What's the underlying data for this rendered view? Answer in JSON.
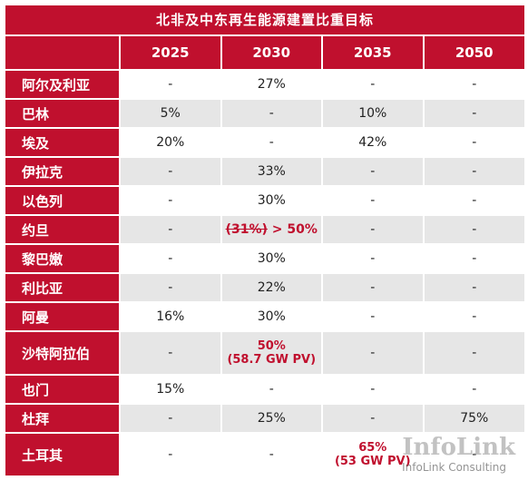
{
  "title": "北非及中东再生能源建置比重目标",
  "columns": [
    "2025",
    "2030",
    "2035",
    "2050"
  ],
  "rows": [
    {
      "country": "阿尔及利亚",
      "cells": [
        "-",
        "27%",
        "-",
        "-"
      ]
    },
    {
      "country": "巴林",
      "cells": [
        "5%",
        "-",
        "10%",
        "-"
      ]
    },
    {
      "country": "埃及",
      "cells": [
        "20%",
        "-",
        "42%",
        "-"
      ]
    },
    {
      "country": "伊拉克",
      "cells": [
        "-",
        "33%",
        "-",
        "-"
      ]
    },
    {
      "country": "以色列",
      "cells": [
        "-",
        "30%",
        "-",
        "-"
      ]
    },
    {
      "country": "约旦",
      "cells": [
        "-",
        "",
        "-",
        "-"
      ],
      "special": {
        "old": "(31%)",
        "arrow": " > ",
        "new": "50%"
      }
    },
    {
      "country": "黎巴嫩",
      "cells": [
        "-",
        "30%",
        "-",
        "-"
      ]
    },
    {
      "country": "利比亚",
      "cells": [
        "-",
        "22%",
        "-",
        "-"
      ]
    },
    {
      "country": "阿曼",
      "cells": [
        "16%",
        "30%",
        "-",
        "-"
      ]
    },
    {
      "country": "沙特阿拉伯",
      "cells": [
        "-",
        "",
        "-",
        "-"
      ],
      "special": {
        "line1": "50%",
        "line2": "(58.7 GW PV)"
      }
    },
    {
      "country": "也门",
      "cells": [
        "15%",
        "-",
        "-",
        "-"
      ]
    },
    {
      "country": "杜拜",
      "cells": [
        "-",
        "25%",
        "-",
        "75%"
      ]
    },
    {
      "country": "土耳其",
      "cells": [
        "-",
        "-",
        "",
        "-"
      ],
      "special": {
        "line1": "65%",
        "line2": "(53 GW PV)"
      }
    }
  ],
  "watermark": {
    "logo": "InfoLink",
    "caption": "InfoLink Consulting"
  }
}
